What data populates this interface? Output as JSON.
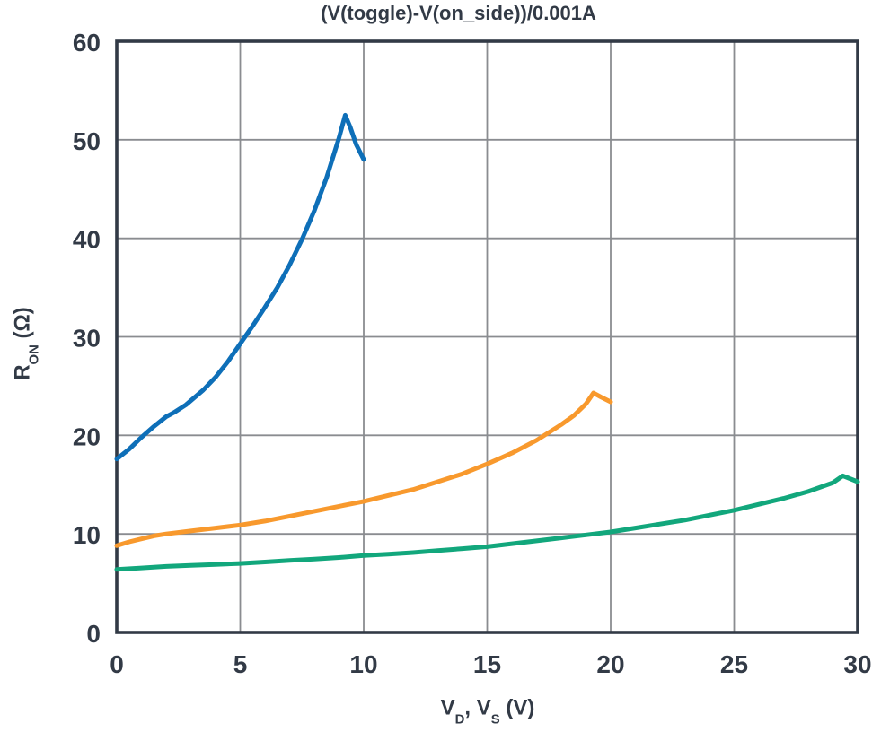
{
  "chart_data": {
    "type": "line",
    "title": "(V(toggle)-V(on_side))/0.001A",
    "ylabel": {
      "main": "R",
      "sub": "ON",
      "unit": " (Ω)"
    },
    "xlabel": {
      "v1": "V",
      "v1_sub": "D",
      "mid": ", ",
      "v2": "V",
      "v2_sub": "S",
      "unit": " (V)"
    },
    "xlim": [
      0,
      30
    ],
    "ylim": [
      0,
      60
    ],
    "x_ticks": [
      0,
      5,
      10,
      15,
      20,
      25,
      30
    ],
    "y_ticks": [
      0,
      10,
      20,
      30,
      40,
      50,
      60
    ],
    "grid": true,
    "legend": "none",
    "colors": {
      "axis": "#323A46",
      "grid": "#8A8C90",
      "background": "#FFFFFF",
      "blue": "#0E6FB8",
      "orange": "#F8992D",
      "green": "#12A77C"
    },
    "series": [
      {
        "name": "blue",
        "color": "#0E6FB8",
        "points": [
          [
            0,
            17.6
          ],
          [
            0.5,
            18.6
          ],
          [
            1,
            19.8
          ],
          [
            1.5,
            20.9
          ],
          [
            2,
            21.9
          ],
          [
            2.3,
            22.3
          ],
          [
            2.8,
            23.1
          ],
          [
            3.5,
            24.6
          ],
          [
            4,
            25.9
          ],
          [
            4.5,
            27.5
          ],
          [
            5,
            29.3
          ],
          [
            5.5,
            31.1
          ],
          [
            6,
            33.0
          ],
          [
            6.5,
            35.0
          ],
          [
            7,
            37.3
          ],
          [
            7.5,
            39.9
          ],
          [
            8,
            42.8
          ],
          [
            8.5,
            46.2
          ],
          [
            9,
            50.2
          ],
          [
            9.25,
            52.5
          ],
          [
            9.45,
            51.3
          ],
          [
            9.7,
            49.5
          ],
          [
            10,
            48.0
          ]
        ]
      },
      {
        "name": "orange",
        "color": "#F8992D",
        "points": [
          [
            0,
            8.8
          ],
          [
            0.5,
            9.2
          ],
          [
            1,
            9.5
          ],
          [
            1.5,
            9.8
          ],
          [
            2,
            10.0
          ],
          [
            3,
            10.3
          ],
          [
            4,
            10.6
          ],
          [
            5,
            10.9
          ],
          [
            6,
            11.3
          ],
          [
            7,
            11.8
          ],
          [
            8,
            12.3
          ],
          [
            9,
            12.8
          ],
          [
            10,
            13.3
          ],
          [
            11,
            13.9
          ],
          [
            12,
            14.5
          ],
          [
            13,
            15.3
          ],
          [
            14,
            16.1
          ],
          [
            15,
            17.1
          ],
          [
            16,
            18.2
          ],
          [
            17,
            19.5
          ],
          [
            18,
            21.1
          ],
          [
            18.5,
            22.0
          ],
          [
            19,
            23.2
          ],
          [
            19.3,
            24.3
          ],
          [
            19.6,
            23.9
          ],
          [
            20,
            23.4
          ]
        ]
      },
      {
        "name": "green",
        "color": "#12A77C",
        "points": [
          [
            0,
            6.4
          ],
          [
            1,
            6.55
          ],
          [
            2,
            6.7
          ],
          [
            3,
            6.8
          ],
          [
            4,
            6.9
          ],
          [
            5,
            7.0
          ],
          [
            6,
            7.15
          ],
          [
            7,
            7.3
          ],
          [
            8,
            7.45
          ],
          [
            9,
            7.6
          ],
          [
            10,
            7.8
          ],
          [
            11,
            7.95
          ],
          [
            12,
            8.1
          ],
          [
            13,
            8.3
          ],
          [
            14,
            8.5
          ],
          [
            15,
            8.7
          ],
          [
            16,
            9.0
          ],
          [
            17,
            9.3
          ],
          [
            18,
            9.6
          ],
          [
            19,
            9.9
          ],
          [
            20,
            10.2
          ],
          [
            21,
            10.6
          ],
          [
            22,
            11.0
          ],
          [
            23,
            11.4
          ],
          [
            24,
            11.9
          ],
          [
            25,
            12.4
          ],
          [
            26,
            13.0
          ],
          [
            27,
            13.6
          ],
          [
            28,
            14.3
          ],
          [
            29,
            15.2
          ],
          [
            29.4,
            15.9
          ],
          [
            30,
            15.3
          ]
        ]
      }
    ]
  }
}
